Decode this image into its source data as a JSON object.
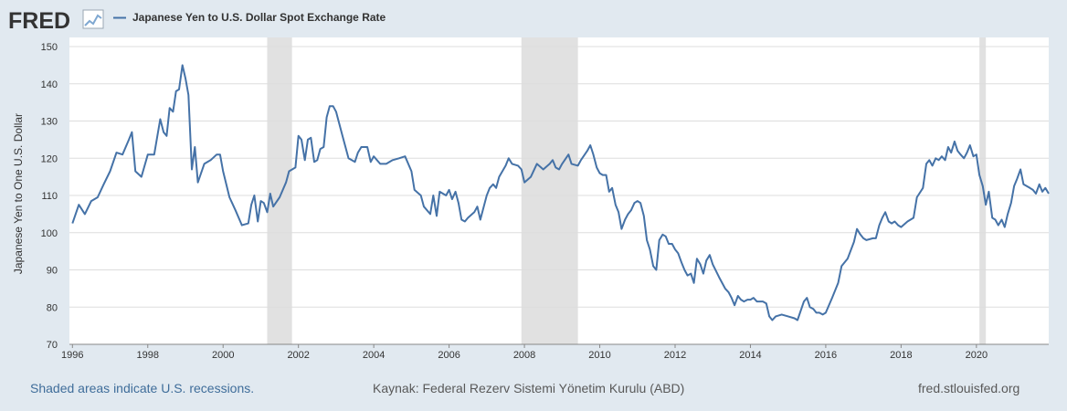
{
  "logo": {
    "text": "FRED",
    "icon": "fred-chart-icon"
  },
  "legend": {
    "series_name": "Japanese Yen to U.S. Dollar Spot Exchange Rate"
  },
  "footer": {
    "recession_note": "Shaded areas indicate U.S. recessions.",
    "source": "Kaynak: Federal Rezerv Sistemi Yönetim Kurulu (ABD)",
    "site": "fred.stlouisfed.org"
  },
  "colors": {
    "line": "#4572a7",
    "background": "#e1e9f0",
    "recession": "#e1e1e1",
    "grid": "#dddddd"
  },
  "chart_data": {
    "type": "line",
    "title": "Japanese Yen to U.S. Dollar Spot Exchange Rate",
    "xlabel": "",
    "ylabel": "Japanese Yen to One U.S. Dollar",
    "ylim": [
      70,
      150
    ],
    "xlim": [
      1995.92,
      2021.92
    ],
    "yticks": [
      70,
      80,
      90,
      100,
      110,
      120,
      130,
      140,
      150
    ],
    "xticks": [
      1996,
      1998,
      2000,
      2002,
      2004,
      2006,
      2008,
      2010,
      2012,
      2014,
      2016,
      2018,
      2020
    ],
    "grid": true,
    "legend": "top-left",
    "recessions": [
      [
        2001.17,
        2001.83
      ],
      [
        2007.92,
        2009.42
      ],
      [
        2020.08,
        2020.25
      ]
    ],
    "series": [
      {
        "name": "Japanese Yen to U.S. Dollar Spot Exchange Rate",
        "points": [
          [
            1996.0,
            102.5
          ],
          [
            1996.17,
            107.5
          ],
          [
            1996.33,
            105
          ],
          [
            1996.5,
            108.5
          ],
          [
            1996.67,
            109.5
          ],
          [
            1996.83,
            113
          ],
          [
            1997.0,
            116.5
          ],
          [
            1997.17,
            121.5
          ],
          [
            1997.33,
            121
          ],
          [
            1997.5,
            125
          ],
          [
            1997.58,
            127
          ],
          [
            1997.67,
            116.5
          ],
          [
            1997.83,
            115
          ],
          [
            1998.0,
            121
          ],
          [
            1998.17,
            121
          ],
          [
            1998.33,
            130.5
          ],
          [
            1998.42,
            127
          ],
          [
            1998.5,
            126
          ],
          [
            1998.58,
            133.5
          ],
          [
            1998.67,
            132.5
          ],
          [
            1998.75,
            138
          ],
          [
            1998.83,
            138.5
          ],
          [
            1998.92,
            145
          ],
          [
            1999.0,
            141.5
          ],
          [
            1999.08,
            137
          ],
          [
            1999.17,
            117
          ],
          [
            1999.25,
            123
          ],
          [
            1999.33,
            113.5
          ],
          [
            1999.5,
            118.5
          ],
          [
            1999.67,
            119.5
          ],
          [
            1999.83,
            121
          ],
          [
            1999.92,
            121
          ],
          [
            2000.0,
            116.5
          ],
          [
            2000.17,
            109.5
          ],
          [
            2000.33,
            106
          ],
          [
            2000.5,
            102
          ],
          [
            2000.67,
            102.5
          ],
          [
            2000.75,
            107.5
          ],
          [
            2000.83,
            110
          ],
          [
            2000.92,
            103
          ],
          [
            2001.0,
            108.5
          ],
          [
            2001.08,
            108
          ],
          [
            2001.17,
            105.5
          ],
          [
            2001.25,
            110.5
          ],
          [
            2001.33,
            107
          ],
          [
            2001.5,
            109.5
          ],
          [
            2001.67,
            113.5
          ],
          [
            2001.75,
            116.5
          ],
          [
            2001.92,
            117.5
          ],
          [
            2002.0,
            126
          ],
          [
            2002.08,
            125
          ],
          [
            2002.17,
            119.5
          ],
          [
            2002.25,
            125
          ],
          [
            2002.33,
            125.5
          ],
          [
            2002.42,
            119
          ],
          [
            2002.5,
            119.5
          ],
          [
            2002.58,
            122.5
          ],
          [
            2002.67,
            123
          ],
          [
            2002.75,
            131
          ],
          [
            2002.83,
            134
          ],
          [
            2002.92,
            134
          ],
          [
            2003.0,
            132.5
          ],
          [
            2003.17,
            126
          ],
          [
            2003.33,
            120
          ],
          [
            2003.5,
            119
          ],
          [
            2003.58,
            121.5
          ],
          [
            2003.67,
            123
          ],
          [
            2003.83,
            123
          ],
          [
            2003.92,
            119
          ],
          [
            2004.0,
            120.5
          ],
          [
            2004.17,
            118.5
          ],
          [
            2004.33,
            118.5
          ],
          [
            2004.5,
            119.5
          ],
          [
            2004.67,
            120
          ],
          [
            2004.83,
            120.5
          ],
          [
            2005.0,
            116.5
          ],
          [
            2005.08,
            111.5
          ],
          [
            2005.25,
            110
          ],
          [
            2005.33,
            107
          ],
          [
            2005.5,
            105
          ],
          [
            2005.58,
            110
          ],
          [
            2005.67,
            104.5
          ],
          [
            2005.75,
            111
          ],
          [
            2005.92,
            110
          ],
          [
            2006.0,
            111.5
          ],
          [
            2006.08,
            109
          ],
          [
            2006.17,
            111
          ],
          [
            2006.25,
            108
          ],
          [
            2006.33,
            103.5
          ],
          [
            2006.42,
            103
          ],
          [
            2006.5,
            104
          ],
          [
            2006.67,
            105.5
          ],
          [
            2006.75,
            107
          ],
          [
            2006.83,
            103.5
          ],
          [
            2007.0,
            110
          ],
          [
            2007.08,
            112
          ],
          [
            2007.17,
            113
          ],
          [
            2007.25,
            112
          ],
          [
            2007.33,
            115
          ],
          [
            2007.5,
            118
          ],
          [
            2007.58,
            120
          ],
          [
            2007.67,
            118.5
          ],
          [
            2007.83,
            118
          ],
          [
            2007.92,
            117
          ],
          [
            2008.0,
            113.5
          ],
          [
            2008.17,
            115
          ],
          [
            2008.33,
            118.5
          ],
          [
            2008.5,
            117
          ],
          [
            2008.67,
            118.5
          ],
          [
            2008.75,
            119.5
          ],
          [
            2008.83,
            117.5
          ],
          [
            2008.92,
            117
          ],
          [
            2009.0,
            118.5
          ],
          [
            2009.17,
            121
          ],
          [
            2009.25,
            118.5
          ],
          [
            2009.42,
            118
          ],
          [
            2009.5,
            119.5
          ],
          [
            2009.67,
            122
          ],
          [
            2009.75,
            123.5
          ],
          [
            2009.83,
            121
          ],
          [
            2009.92,
            117.5
          ],
          [
            2010.0,
            116
          ],
          [
            2010.08,
            115.5
          ],
          [
            2010.17,
            115.5
          ],
          [
            2010.25,
            111
          ],
          [
            2010.33,
            112
          ],
          [
            2010.42,
            107.5
          ],
          [
            2010.5,
            105.5
          ],
          [
            2010.58,
            101
          ],
          [
            2010.67,
            103.5
          ],
          [
            2010.75,
            105
          ],
          [
            2010.83,
            106
          ],
          [
            2010.92,
            108
          ],
          [
            2011.0,
            108.5
          ],
          [
            2011.08,
            108
          ],
          [
            2011.17,
            104.5
          ],
          [
            2011.25,
            98
          ],
          [
            2011.33,
            95.5
          ],
          [
            2011.42,
            91
          ],
          [
            2011.5,
            90
          ],
          [
            2011.58,
            98
          ],
          [
            2011.67,
            99.5
          ],
          [
            2011.75,
            99
          ],
          [
            2011.83,
            97
          ],
          [
            2011.92,
            97
          ],
          [
            2012.0,
            95.5
          ],
          [
            2012.08,
            94.5
          ],
          [
            2012.17,
            92
          ],
          [
            2012.25,
            90
          ],
          [
            2012.33,
            88.5
          ],
          [
            2012.42,
            89
          ],
          [
            2012.5,
            86.5
          ],
          [
            2012.58,
            93
          ],
          [
            2012.67,
            91.5
          ],
          [
            2012.75,
            89
          ],
          [
            2012.83,
            92.5
          ],
          [
            2012.92,
            94
          ],
          [
            2013.0,
            91.5
          ],
          [
            2013.17,
            88
          ],
          [
            2013.33,
            85
          ],
          [
            2013.42,
            84
          ],
          [
            2013.5,
            82.5
          ],
          [
            2013.58,
            80.5
          ],
          [
            2013.67,
            83
          ],
          [
            2013.75,
            82
          ],
          [
            2013.83,
            81.5
          ],
          [
            2013.92,
            82
          ],
          [
            2014.0,
            82
          ],
          [
            2014.08,
            82.5
          ],
          [
            2014.17,
            81.5
          ],
          [
            2014.33,
            81.5
          ],
          [
            2014.42,
            81
          ],
          [
            2014.5,
            77.5
          ],
          [
            2014.58,
            76.5
          ],
          [
            2014.67,
            77.5
          ],
          [
            2014.83,
            78
          ],
          [
            2015.0,
            77.5
          ],
          [
            2015.17,
            77
          ],
          [
            2015.25,
            76.5
          ],
          [
            2015.42,
            81.5
          ],
          [
            2015.5,
            82.5
          ],
          [
            2015.58,
            80
          ],
          [
            2015.67,
            79.5
          ],
          [
            2015.75,
            78.5
          ],
          [
            2015.83,
            78.5
          ],
          [
            2015.92,
            78
          ],
          [
            2016.0,
            78.5
          ],
          [
            2016.17,
            82.5
          ],
          [
            2016.33,
            86.5
          ],
          [
            2016.42,
            91
          ],
          [
            2016.58,
            93
          ],
          [
            2016.75,
            97.5
          ],
          [
            2016.83,
            101
          ],
          [
            2016.92,
            99.5
          ],
          [
            2017.0,
            98.5
          ],
          [
            2017.08,
            98
          ],
          [
            2017.25,
            98.5
          ],
          [
            2017.33,
            98.5
          ],
          [
            2017.42,
            102
          ],
          [
            2017.5,
            104
          ],
          [
            2017.58,
            105.5
          ],
          [
            2017.67,
            103
          ],
          [
            2017.75,
            102.5
          ],
          [
            2017.83,
            103
          ],
          [
            2017.92,
            102
          ],
          [
            2018.0,
            101.5
          ],
          [
            2018.17,
            103
          ],
          [
            2018.33,
            104
          ],
          [
            2018.42,
            109.5
          ],
          [
            2018.58,
            112
          ],
          [
            2018.67,
            118.5
          ],
          [
            2018.75,
            119.5
          ],
          [
            2018.83,
            118
          ],
          [
            2018.92,
            120
          ],
          [
            2019.0,
            119.5
          ],
          [
            2019.08,
            120.5
          ],
          [
            2019.17,
            119.5
          ],
          [
            2019.25,
            123
          ],
          [
            2019.33,
            121.5
          ],
          [
            2019.42,
            124.5
          ],
          [
            2019.5,
            122
          ],
          [
            2019.58,
            121
          ],
          [
            2019.67,
            120
          ],
          [
            2019.75,
            121.5
          ],
          [
            2019.83,
            123.5
          ],
          [
            2019.92,
            120.5
          ],
          [
            2020.0,
            121
          ],
          [
            2020.08,
            115.5
          ],
          [
            2020.17,
            112.5
          ],
          [
            2020.25,
            107.5
          ],
          [
            2020.33,
            111
          ],
          [
            2020.42,
            104
          ],
          [
            2020.5,
            103.5
          ],
          [
            2020.58,
            102
          ],
          [
            2020.67,
            103.5
          ],
          [
            2020.75,
            101.5
          ],
          [
            2020.83,
            105
          ],
          [
            2020.92,
            108
          ],
          [
            2021.0,
            112.5
          ],
          [
            2021.08,
            114.5
          ],
          [
            2021.17,
            117
          ],
          [
            2021.25,
            113
          ],
          [
            2021.42,
            112
          ],
          [
            2021.5,
            111.5
          ],
          [
            2021.58,
            110.5
          ],
          [
            2021.67,
            113
          ],
          [
            2021.75,
            111
          ],
          [
            2021.83,
            112
          ],
          [
            2021.92,
            110.5
          ]
        ]
      }
    ]
  }
}
